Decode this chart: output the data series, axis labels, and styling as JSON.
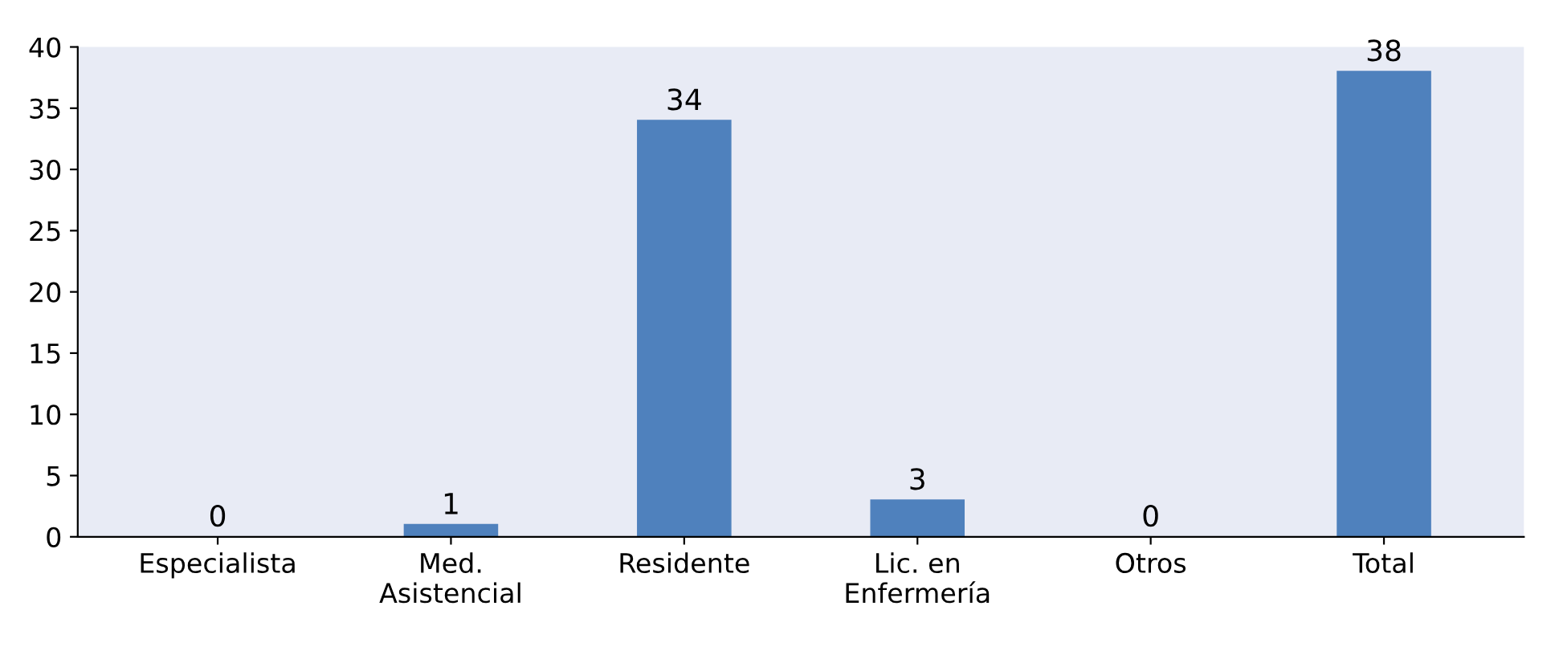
{
  "chart_data": {
    "type": "bar",
    "categories": [
      "Especialista",
      "Med.\nAsistencial",
      "Residente",
      "Lic. en\nEnfermería",
      "Otros",
      "Total"
    ],
    "values": [
      0,
      1,
      34,
      3,
      0,
      38
    ],
    "color": "#4f81bd",
    "ylim": [
      0,
      40
    ],
    "yticks": [
      0,
      5,
      10,
      15,
      20,
      25,
      30,
      35,
      40
    ],
    "data_labels": true,
    "grid": false
  }
}
